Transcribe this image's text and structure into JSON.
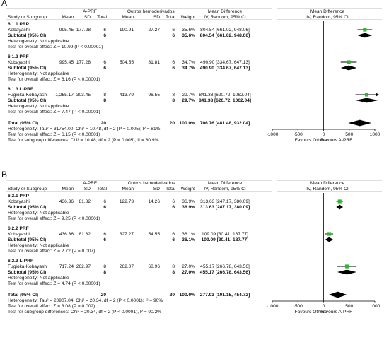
{
  "chart_data": [
    {
      "type": "forest",
      "panel_label": "A",
      "headers": {
        "study_col": "Study or Subgroup",
        "group1": "A-PRF",
        "group2": "Outros hemoderivadosl",
        "mean": "Mean",
        "sd": "SD",
        "total": "Total",
        "weight": "Weight",
        "effect_title": "Mean Difference",
        "effect_sub": "IV, Random, 95% CI",
        "plot_title": "Mean Difference",
        "plot_sub": "IV, Random, 95% CI"
      },
      "subgroups": [
        {
          "title": "6.1.1 PRP",
          "studies": [
            {
              "name": "Kobayashi",
              "m1": "995.45",
              "sd1": "177.28",
              "n1": "6",
              "m2": "190.91",
              "sd2": "27.27",
              "n2": "6",
              "weight": "35.6%",
              "ci_text": "804.54 [661.02, 948.06]",
              "est": 804.54,
              "lo": 661.02,
              "hi": 948.06,
              "arrow": false
            }
          ],
          "subtotal": {
            "label": "Subtotal (95% CI)",
            "n1": "6",
            "n2": "6",
            "weight": "35.6%",
            "ci_text": "804.54 [661.02, 948.06]",
            "est": 804.54,
            "lo": 661.02,
            "hi": 948.06
          },
          "heterogeneity": "Heterogeneity: Not applicable",
          "overall_test": "Test for overall effect: Z = 10.99 (P < 0.00001)"
        },
        {
          "title": "6.1.2 PRF",
          "studies": [
            {
              "name": "Kobayashi",
              "m1": "995.45",
              "sd1": "177.28",
              "n1": "6",
              "m2": "504.55",
              "sd2": "81.81",
              "n2": "6",
              "weight": "34.7%",
              "ci_text": "490.90 [334.67, 647.13]",
              "est": 490.9,
              "lo": 334.67,
              "hi": 647.13,
              "arrow": false
            }
          ],
          "subtotal": {
            "label": "Subtotal (95% CI)",
            "n1": "6",
            "n2": "6",
            "weight": "34.7%",
            "ci_text": "490.90 [334.67, 647.13]",
            "est": 490.9,
            "lo": 334.67,
            "hi": 647.13
          },
          "heterogeneity": "Heterogeneity: Not applicable",
          "overall_test": "Test for overall effect: Z = 6.16 (P < 0.00001)"
        },
        {
          "title": "6.1.3 L-PRF",
          "studies": [
            {
              "name": "Fugioka-Kobayashi",
              "m1": "1,255.17",
              "sd1": "303.45",
              "n1": "8",
              "m2": "413.79",
              "sd2": "96.55",
              "n2": "8",
              "weight": "29.7%",
              "ci_text": "841.38 [620.72, 1062.04]",
              "est": 841.38,
              "lo": 620.72,
              "hi": 1062.04,
              "arrow": true
            }
          ],
          "subtotal": {
            "label": "Subtotal (95% CI)",
            "n1": "8",
            "n2": "8",
            "weight": "29.7%",
            "ci_text": "841.38 [620.72, 1062.04]",
            "est": 841.38,
            "lo": 620.72,
            "hi": 1062.04
          },
          "heterogeneity": "Heterogeneity: Not applicable",
          "overall_test": "Test for overall effect: Z = 7.47 (P < 0.00001)"
        }
      ],
      "total": {
        "label": "Total (95% CI)",
        "n1": "20",
        "n2": "20",
        "weight": "100.0%",
        "ci_text": "706.76 [481.48, 932.04]",
        "est": 706.76,
        "lo": 481.48,
        "hi": 932.04
      },
      "footer": [
        "Heterogeneity: Tau² = 31754.00; Chi² = 10.48, df = 2 (P = 0.005); I² = 81%",
        "Test for overall effect: Z = 6.15 (P < 0.00001)",
        "Test for subgroup differences: Chi² = 10.48, df = 2 (P = 0.005), I² = 80.9%"
      ],
      "axis": {
        "min": -1000,
        "max": 1000,
        "ticks": [
          -1000,
          -500,
          0,
          500,
          1000
        ],
        "tick_labels": [
          "-1000",
          "-500",
          "0",
          "500",
          "1000"
        ],
        "left_label": "Favours Others",
        "right_label": "Favours A-PRF"
      }
    },
    {
      "type": "forest",
      "panel_label": "B",
      "headers": {
        "study_col": "Study or Subgroup",
        "group1": "A-PRF",
        "group2": "Outros hemoderivados",
        "mean": "Mean",
        "sd": "SD",
        "total": "Total",
        "weight": "Weight",
        "effect_title": "Mean Difference",
        "effect_sub": "IV, Random, 95% CI",
        "plot_title": "Mean Difference",
        "plot_sub": "IV, Random, 95% CI"
      },
      "subgroups": [
        {
          "title": "6.2.1 PRP",
          "studies": [
            {
              "name": "Kobayashi",
              "m1": "436.36",
              "sd1": "81.82",
              "n1": "6",
              "m2": "122.73",
              "sd2": "14.26",
              "n2": "6",
              "weight": "36.9%",
              "ci_text": "313.63 [247.17, 380.09]",
              "est": 313.63,
              "lo": 247.17,
              "hi": 380.09,
              "arrow": false
            }
          ],
          "subtotal": {
            "label": "Subtotal (95% CI)",
            "n1": "6",
            "n2": "6",
            "weight": "36.9%",
            "ci_text": "313.63 [247.17, 380.09]",
            "est": 313.63,
            "lo": 247.17,
            "hi": 380.09
          },
          "heterogeneity": "Heterogeneity: Not applicable",
          "overall_test": "Test for overall effect: Z = 9.25 (P < 0.00001)"
        },
        {
          "title": "6.2.2 PRF",
          "studies": [
            {
              "name": "Kobayashi",
              "m1": "436.36",
              "sd1": "81.82",
              "n1": "6",
              "m2": "327.27",
              "sd2": "54.55",
              "n2": "6",
              "weight": "36.1%",
              "ci_text": "109.09 [30.41, 187.77]",
              "est": 109.09,
              "lo": 30.41,
              "hi": 187.77,
              "arrow": false
            }
          ],
          "subtotal": {
            "label": "Subtotal (95% CI)",
            "n1": "6",
            "n2": "6",
            "weight": "36.1%",
            "ci_text": "109.09 [30.41, 187.77]",
            "est": 109.09,
            "lo": 30.41,
            "hi": 187.77
          },
          "heterogeneity": "Heterogeneity: Not applicable",
          "overall_test": "Test for overall effect: Z = 2.72 (P = 0.007)"
        },
        {
          "title": "6.2.3 L-PRF",
          "studies": [
            {
              "name": "Fugioka-Kobayashi",
              "m1": "717.24",
              "sd1": "262.97",
              "n1": "8",
              "m2": "262.07",
              "sd2": "68.96",
              "n2": "8",
              "weight": "27.0%",
              "ci_text": "455.17 [266.78, 643.56]",
              "est": 455.17,
              "lo": 266.78,
              "hi": 643.56,
              "arrow": false
            }
          ],
          "subtotal": {
            "label": "Subtotal (95% CI)",
            "n1": "8",
            "n2": "8",
            "weight": "27.0%",
            "ci_text": "455.17 [266.78, 643.56]",
            "est": 455.17,
            "lo": 266.78,
            "hi": 643.56
          },
          "heterogeneity": "Heterogeneity: Not applicable",
          "overall_test": "Test for overall effect: Z = 4.74 (P < 0.00001)"
        }
      ],
      "total": {
        "label": "Total (95% CI)",
        "n1": "20",
        "n2": "20",
        "weight": "100.0%",
        "ci_text": "277.93 [101.15, 454.72]",
        "est": 277.93,
        "lo": 101.15,
        "hi": 454.72
      },
      "footer": [
        "Heterogeneity: Tau² = 20907.04; Chi² = 20.34, df = 2 (P < 0.0001); I² = 90%",
        "Test for overall effect: Z = 3.08 (P = 0.002)",
        "Test for subgroup differences: Chi² = 20.34, df = 2 (P < 0.0001), I² = 90.2%"
      ],
      "axis": {
        "min": -1000,
        "max": 1000,
        "ticks": [
          -1000,
          -500,
          0,
          500,
          1000
        ],
        "tick_labels": [
          "-1000",
          "-500",
          "0",
          "500",
          "1000"
        ],
        "left_label": "Favours Others",
        "right_label": "Favours A-PRF"
      }
    }
  ],
  "colors": {
    "text": "#111111",
    "marker": "#2db82d",
    "diamond": "#000000",
    "rule": "#7a7a7a"
  }
}
